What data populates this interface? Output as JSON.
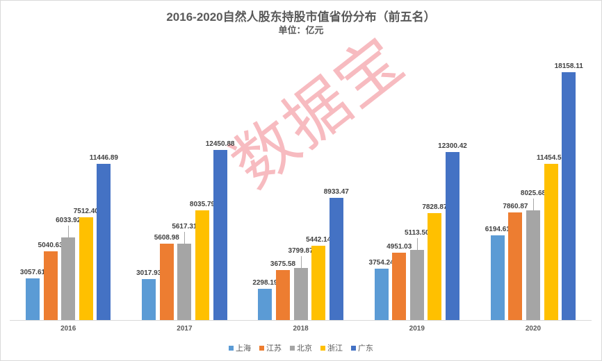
{
  "header": {
    "title": "2016-2020自然人股东持股市值省份分布（前五名）",
    "subtitle": "单位：亿元"
  },
  "watermark": "数据宝",
  "legend": [
    {
      "label": "上海",
      "color": "#5B9BD5"
    },
    {
      "label": "江苏",
      "color": "#ED7D31"
    },
    {
      "label": "北京",
      "color": "#A5A5A5"
    },
    {
      "label": "浙江",
      "color": "#FFC000"
    },
    {
      "label": "广东",
      "color": "#4472C4"
    }
  ],
  "chart_data": {
    "type": "bar",
    "title": "2016-2020自然人股东持股市值省份分布（前五名）",
    "subtitle": "单位：亿元",
    "xlabel": "",
    "ylabel": "亿元",
    "categories": [
      "2016",
      "2017",
      "2018",
      "2019",
      "2020"
    ],
    "series": [
      {
        "name": "上海",
        "color": "#5B9BD5",
        "values": [
          3057.61,
          3017.93,
          2298.19,
          3754.24,
          6194.61
        ],
        "labels": [
          "3057.61",
          "3017.93",
          "2298.19",
          "3754.24",
          "6194.61"
        ]
      },
      {
        "name": "江苏",
        "color": "#ED7D31",
        "values": [
          5040.63,
          5608.98,
          3675.58,
          4951.03,
          7860.87
        ],
        "labels": [
          "5040.63",
          "5608.98",
          "3675.58",
          "4951.03",
          "7860.87"
        ]
      },
      {
        "name": "北京",
        "color": "#A5A5A5",
        "values": [
          6033.92,
          5617.31,
          3799.87,
          5113.5,
          8025.68
        ],
        "labels": [
          "6033.92",
          "5617.31",
          "3799.87",
          "5113.50",
          "8025.68"
        ]
      },
      {
        "name": "浙江",
        "color": "#FFC000",
        "values": [
          7512.4,
          8035.79,
          5442.14,
          7828.87,
          11454.53
        ],
        "labels": [
          "7512.40",
          "8035.79",
          "5442.14",
          "7828.87",
          "11454.53"
        ]
      },
      {
        "name": "广东",
        "color": "#4472C4",
        "values": [
          11446.89,
          12450.88,
          8933.47,
          12300.42,
          18158.11
        ],
        "labels": [
          "11446.89",
          "12450.88",
          "8933.47",
          "12300.42",
          "18158.11"
        ]
      }
    ],
    "ylim": [
      0,
      18158.11
    ],
    "grid": false,
    "legend_position": "bottom",
    "data_labels": true
  }
}
